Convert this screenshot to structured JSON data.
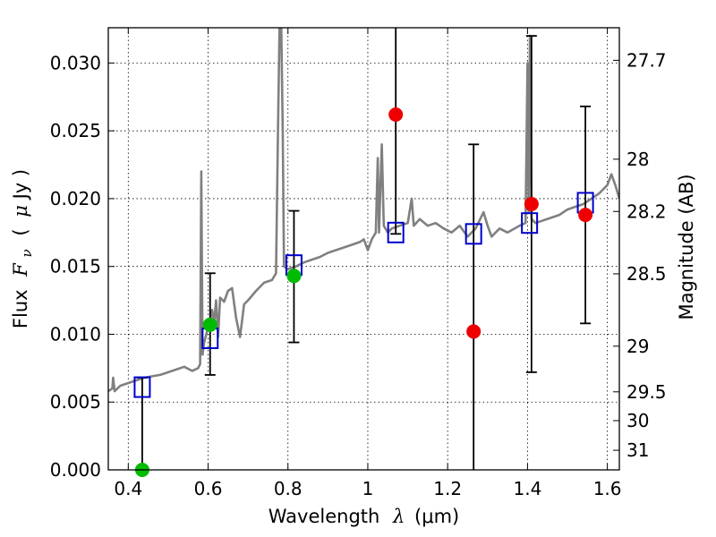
{
  "chart_data": {
    "type": "scatter",
    "xlabel_text": "Wavelength",
    "xlabel_symbol": "λ",
    "xlabel_unit": "(μm)",
    "ylabel_text": "Flux",
    "ylabel_symbol": "F",
    "ylabel_subscript": "ν",
    "ylabel_unit_open": "(",
    "ylabel_unit_mu": "μ",
    "ylabel_unit_rest": "Jy )",
    "y2label": "Magnitude (AB)",
    "xlim": [
      0.35,
      1.63
    ],
    "ylim": [
      0.0,
      0.0326
    ],
    "grid": true,
    "x_ticks": [
      {
        "value": 0.4,
        "label": "0.4"
      },
      {
        "value": 0.6,
        "label": "0.6"
      },
      {
        "value": 0.8,
        "label": "0.8"
      },
      {
        "value": 1.0,
        "label": "1"
      },
      {
        "value": 1.2,
        "label": "1.2"
      },
      {
        "value": 1.4,
        "label": "1.4"
      },
      {
        "value": 1.6,
        "label": "1.6"
      }
    ],
    "y_ticks": [
      {
        "value": 0.0,
        "label": "0.000"
      },
      {
        "value": 0.005,
        "label": "0.005"
      },
      {
        "value": 0.01,
        "label": "0.010"
      },
      {
        "value": 0.015,
        "label": "0.015"
      },
      {
        "value": 0.02,
        "label": "0.020"
      },
      {
        "value": 0.025,
        "label": "0.025"
      },
      {
        "value": 0.03,
        "label": "0.030"
      }
    ],
    "y2_ticks": [
      {
        "mag": 27.7,
        "label": "27.7"
      },
      {
        "mag": 28.0,
        "label": "28"
      },
      {
        "mag": 28.2,
        "label": "28.2"
      },
      {
        "mag": 28.5,
        "label": "28.5"
      },
      {
        "mag": 29.0,
        "label": "29"
      },
      {
        "mag": 29.5,
        "label": "29.5"
      },
      {
        "mag": 30.0,
        "label": "30"
      },
      {
        "mag": 31.0,
        "label": "31"
      }
    ],
    "colors": {
      "spectrum": "#808080",
      "model": "#0000cc",
      "detection": "#00bb00",
      "upper": "#ee0000",
      "errorbar": "#000000"
    },
    "spectrum": [
      [
        0.35,
        0.0058
      ],
      [
        0.36,
        0.006
      ],
      [
        0.362,
        0.0068
      ],
      [
        0.366,
        0.0058
      ],
      [
        0.38,
        0.0062
      ],
      [
        0.4,
        0.0064
      ],
      [
        0.42,
        0.0066
      ],
      [
        0.44,
        0.0068
      ],
      [
        0.46,
        0.0069
      ],
      [
        0.48,
        0.007
      ],
      [
        0.5,
        0.0072
      ],
      [
        0.52,
        0.0074
      ],
      [
        0.54,
        0.0076
      ],
      [
        0.56,
        0.0073
      ],
      [
        0.575,
        0.0075
      ],
      [
        0.58,
        0.0078
      ],
      [
        0.583,
        0.022
      ],
      [
        0.586,
        0.0085
      ],
      [
        0.59,
        0.0094
      ],
      [
        0.6,
        0.0105
      ],
      [
        0.61,
        0.0118
      ],
      [
        0.615,
        0.0108
      ],
      [
        0.62,
        0.0125
      ],
      [
        0.625,
        0.0098
      ],
      [
        0.63,
        0.0127
      ],
      [
        0.64,
        0.0124
      ],
      [
        0.65,
        0.0132
      ],
      [
        0.66,
        0.0134
      ],
      [
        0.67,
        0.0112
      ],
      [
        0.68,
        0.0098
      ],
      [
        0.69,
        0.0122
      ],
      [
        0.7,
        0.0125
      ],
      [
        0.72,
        0.0132
      ],
      [
        0.74,
        0.0138
      ],
      [
        0.76,
        0.014
      ],
      [
        0.77,
        0.0145
      ],
      [
        0.775,
        0.025
      ],
      [
        0.779,
        0.033
      ],
      [
        0.783,
        0.033
      ],
      [
        0.787,
        0.025
      ],
      [
        0.79,
        0.015
      ],
      [
        0.8,
        0.0148
      ],
      [
        0.82,
        0.015
      ],
      [
        0.84,
        0.0153
      ],
      [
        0.86,
        0.0155
      ],
      [
        0.88,
        0.0157
      ],
      [
        0.9,
        0.016
      ],
      [
        0.92,
        0.0162
      ],
      [
        0.94,
        0.0164
      ],
      [
        0.96,
        0.0166
      ],
      [
        0.98,
        0.0168
      ],
      [
        0.99,
        0.017
      ],
      [
        1.0,
        0.0162
      ],
      [
        1.01,
        0.017
      ],
      [
        1.02,
        0.0175
      ],
      [
        1.025,
        0.023
      ],
      [
        1.028,
        0.0175
      ],
      [
        1.035,
        0.024
      ],
      [
        1.04,
        0.018
      ],
      [
        1.05,
        0.0175
      ],
      [
        1.06,
        0.0178
      ],
      [
        1.08,
        0.018
      ],
      [
        1.1,
        0.0182
      ],
      [
        1.11,
        0.02
      ],
      [
        1.115,
        0.018
      ],
      [
        1.13,
        0.0185
      ],
      [
        1.15,
        0.018
      ],
      [
        1.17,
        0.0182
      ],
      [
        1.19,
        0.0178
      ],
      [
        1.21,
        0.0175
      ],
      [
        1.23,
        0.018
      ],
      [
        1.25,
        0.0172
      ],
      [
        1.27,
        0.0178
      ],
      [
        1.29,
        0.019
      ],
      [
        1.3,
        0.018
      ],
      [
        1.31,
        0.0172
      ],
      [
        1.33,
        0.0178
      ],
      [
        1.35,
        0.0175
      ],
      [
        1.38,
        0.018
      ],
      [
        1.395,
        0.0182
      ],
      [
        1.4,
        0.03
      ],
      [
        1.403,
        0.019
      ],
      [
        1.406,
        0.032
      ],
      [
        1.41,
        0.0185
      ],
      [
        1.42,
        0.0182
      ],
      [
        1.44,
        0.0184
      ],
      [
        1.46,
        0.0186
      ],
      [
        1.48,
        0.0188
      ],
      [
        1.5,
        0.0192
      ],
      [
        1.52,
        0.0194
      ],
      [
        1.54,
        0.0196
      ],
      [
        1.56,
        0.02
      ],
      [
        1.58,
        0.0204
      ],
      [
        1.6,
        0.021
      ],
      [
        1.61,
        0.0218
      ],
      [
        1.62,
        0.021
      ],
      [
        1.63,
        0.02
      ]
    ],
    "model_points": [
      {
        "x": 0.435,
        "y": 0.0061
      },
      {
        "x": 0.605,
        "y": 0.0097
      },
      {
        "x": 0.815,
        "y": 0.0151
      },
      {
        "x": 1.07,
        "y": 0.0175
      },
      {
        "x": 1.265,
        "y": 0.0174
      },
      {
        "x": 1.405,
        "y": 0.0182
      },
      {
        "x": 1.545,
        "y": 0.0197
      }
    ],
    "detections": [
      {
        "x": 0.435,
        "y": 0.0,
        "err_low": 0.0,
        "err_high": 0.0068
      },
      {
        "x": 0.605,
        "y": 0.0107,
        "err_low": 0.007,
        "err_high": 0.0145
      },
      {
        "x": 0.815,
        "y": 0.0143,
        "err_low": 0.0094,
        "err_high": 0.0191
      }
    ],
    "upper_limits": [
      {
        "x": 1.07,
        "y": 0.0262,
        "err_low": 0.0174,
        "err_high": 0.033
      },
      {
        "x": 1.265,
        "y": 0.0102,
        "err_low": 0.0,
        "err_high": 0.024
      },
      {
        "x": 1.41,
        "y": 0.0196,
        "err_low": 0.0072,
        "err_high": 0.032
      },
      {
        "x": 1.545,
        "y": 0.0188,
        "err_low": 0.0108,
        "err_high": 0.0268
      }
    ]
  }
}
